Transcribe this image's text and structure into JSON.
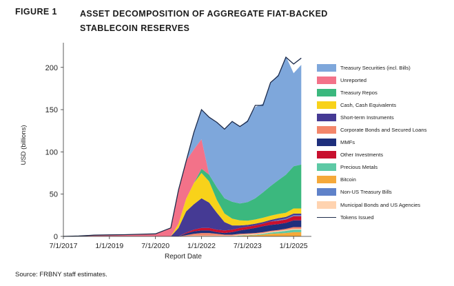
{
  "figure_label": "FIGURE 1",
  "figure_title": "ASSET DECOMPOSITION OF AGGREGATE FIAT-BACKED STABLECOIN RESERVES",
  "source_note": "Source: FRBNY staff estimates.",
  "chart_data": {
    "type": "area",
    "stacked": true,
    "title": "ASSET DECOMPOSITION OF AGGREGATE FIAT-BACKED STABLECOIN RESERVES",
    "xlabel": "Report Date",
    "ylabel": "USD (billions)",
    "ylim": [
      0,
      220
    ],
    "yticks": [
      0,
      50,
      100,
      150,
      200
    ],
    "xticks": [
      "7/1/2017",
      "1/1/2019",
      "7/1/2020",
      "1/1/2022",
      "7/1/2023",
      "1/1/2025"
    ],
    "x": [
      "7/1/2017",
      "1/1/2018",
      "7/1/2018",
      "1/1/2019",
      "7/1/2019",
      "1/1/2020",
      "7/1/2020",
      "1/1/2021",
      "4/1/2021",
      "7/1/2021",
      "10/1/2021",
      "1/1/2022",
      "4/1/2022",
      "7/1/2022",
      "10/1/2022",
      "1/1/2023",
      "4/1/2023",
      "7/1/2023",
      "10/1/2023",
      "1/1/2024",
      "4/1/2024",
      "7/1/2024",
      "10/1/2024",
      "1/1/2025",
      "4/1/2025"
    ],
    "legend_position": "right",
    "series": [
      {
        "name": "Bitcoin",
        "color": "#f5a93a",
        "values": [
          0,
          0,
          0,
          0,
          0,
          0,
          0,
          0,
          0,
          0,
          0,
          0,
          0,
          0,
          0,
          0,
          0.5,
          1,
          1.5,
          2,
          3,
          3.5,
          4,
          5,
          5
        ]
      },
      {
        "name": "Precious Metals",
        "color": "#5dc9a5",
        "values": [
          0,
          0,
          0,
          0,
          0,
          0,
          0,
          0,
          0,
          0,
          0,
          0,
          0,
          0,
          0,
          0,
          0.5,
          0.5,
          0.5,
          1,
          1.5,
          2,
          2.5,
          3,
          3
        ]
      },
      {
        "name": "Municipal Bonds and US Agencies",
        "color": "#ffd3b0",
        "values": [
          0,
          0,
          0,
          0,
          0,
          0,
          0,
          0,
          0,
          0.5,
          1,
          1,
          1,
          1,
          1,
          1,
          1,
          1,
          1,
          1,
          1,
          1,
          1,
          1,
          1
        ]
      },
      {
        "name": "Corporate Bonds and Secured Loans",
        "color": "#f3866a",
        "values": [
          0,
          0,
          0,
          0,
          0,
          0,
          0,
          0,
          0,
          1,
          2,
          3,
          3,
          2,
          1,
          1,
          1,
          1,
          1,
          1,
          1,
          1,
          1.5,
          2,
          2
        ]
      },
      {
        "name": "MMFs",
        "color": "#1e2f7c",
        "values": [
          0,
          0,
          0,
          0,
          0,
          0,
          0,
          0,
          0,
          2,
          3,
          3,
          3,
          2,
          2,
          3,
          4,
          5,
          6,
          7,
          7,
          7,
          7,
          8,
          8
        ]
      },
      {
        "name": "Other Investments",
        "color": "#c8102e",
        "values": [
          0,
          0,
          0,
          0,
          0,
          0,
          0,
          0,
          0,
          1,
          2,
          3,
          3,
          3,
          3,
          3,
          3,
          3,
          3,
          3,
          4,
          4,
          4,
          5,
          5
        ]
      },
      {
        "name": "Non-US Treasury Bills",
        "color": "#5f82c9",
        "values": [
          0,
          0,
          0,
          0,
          0,
          0,
          0,
          0,
          0,
          0,
          0,
          0,
          0,
          0,
          0,
          0,
          0,
          0,
          0,
          0,
          0,
          1,
          1,
          1,
          1
        ]
      },
      {
        "name": "Short-term Instruments",
        "color": "#453a94",
        "values": [
          0,
          0,
          0,
          0,
          0,
          0,
          0,
          0,
          10,
          25,
          30,
          35,
          30,
          20,
          10,
          5,
          3,
          2,
          2,
          2,
          2,
          2,
          2,
          2,
          2
        ]
      },
      {
        "name": "Cash, Cash Equivalents",
        "color": "#f8d21a",
        "values": [
          0,
          0,
          0,
          0,
          0,
          0,
          0,
          0,
          5,
          15,
          25,
          30,
          25,
          15,
          10,
          8,
          6,
          5,
          5,
          5,
          5,
          5,
          5,
          6,
          6
        ]
      },
      {
        "name": "Treasury Repos",
        "color": "#3bb87e",
        "values": [
          0,
          0,
          0,
          0,
          0,
          0,
          0,
          0,
          0,
          0,
          0,
          5,
          8,
          15,
          18,
          20,
          20,
          22,
          25,
          30,
          35,
          40,
          45,
          50,
          52
        ]
      },
      {
        "name": "Unreported",
        "color": "#f37289",
        "values": [
          0,
          0.5,
          1.5,
          1.8,
          2,
          2.5,
          3,
          10,
          40,
          45,
          40,
          35,
          0,
          0,
          0,
          0,
          0,
          0,
          0,
          0,
          0,
          0,
          0,
          0,
          0
        ]
      },
      {
        "name": "Treasury Securities (incl. Bills)",
        "color": "#7ea7db",
        "values": [
          0,
          0,
          0,
          0,
          0,
          0,
          0,
          0,
          0,
          0,
          20,
          35,
          68,
          77,
          82,
          95,
          91,
          97,
          108,
          105,
          122,
          125,
          140,
          110,
          118
        ]
      }
    ],
    "tokens_issued": {
      "name": "Tokens Issued",
      "color": "#1c2a4a",
      "values": [
        0,
        0.5,
        1.5,
        1.8,
        2,
        2.5,
        3,
        10,
        55,
        89,
        123,
        150,
        141,
        135,
        127,
        136,
        130,
        136,
        155,
        155,
        182,
        190,
        212,
        204,
        211
      ]
    },
    "legend_order": [
      "Treasury Securities (incl. Bills)",
      "Unreported",
      "Treasury Repos",
      "Cash, Cash Equivalents",
      "Short-term Instruments",
      "Corporate Bonds and Secured Loans",
      "MMFs",
      "Other Investments",
      "Precious Metals",
      "Bitcoin",
      "Non-US Treasury Bills",
      "Municipal Bonds and US Agencies",
      "Tokens Issued"
    ]
  }
}
